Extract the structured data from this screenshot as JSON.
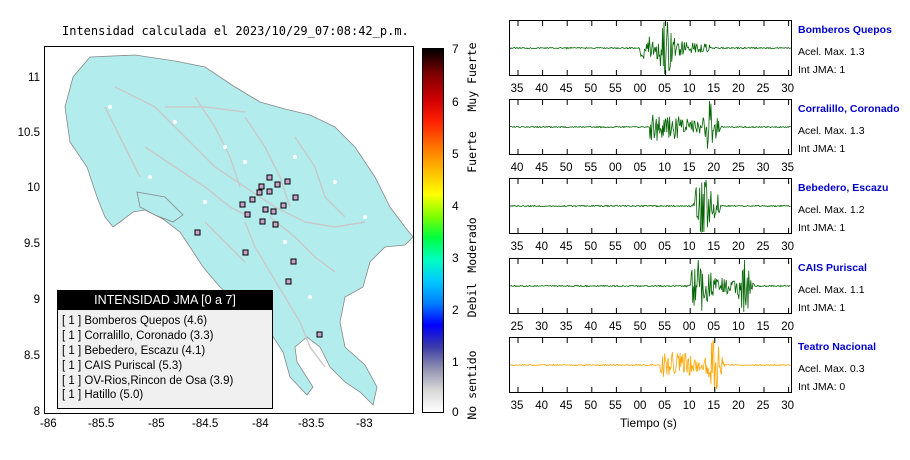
{
  "map": {
    "title": "Intensidad calculada el 2023/10/29_07:08:42_p.m.",
    "y_ticks": [
      "11",
      "10.5",
      "10",
      "9.5",
      "9",
      "8.5",
      "8"
    ],
    "x_ticks": [
      "-86",
      "-85.5",
      "-85",
      "-84.5",
      "-84",
      "-83.5",
      "-83"
    ]
  },
  "legend": {
    "header": "INTENSIDAD JMA [0 a 7]",
    "rows": [
      "[ 1 ]  Bomberos Quepos (4.6)",
      "[ 1 ]  Corralillo, Coronado (3.3)",
      "[ 1 ]  Bebedero, Escazu (4.1)",
      "[ 1 ]  CAIS Puriscal (5.3)",
      "[ 1 ]  OV-Rios,Rincon de Osa (3.9)",
      "[ 1 ]  Hatillo (5.0)"
    ]
  },
  "colorbar": {
    "numbers": [
      "7",
      "6",
      "5",
      "4",
      "3",
      "2",
      "1",
      "0"
    ],
    "words": [
      "Muy Fuerte",
      "Fuerte",
      "Moderado",
      "Debil",
      "No sentido"
    ]
  },
  "stations": [
    {
      "name": "Bomberos Quepos",
      "acel": "Acel. Max. 1.3",
      "jma": "Int JMA: 1",
      "color": "#006400",
      "ticks": [
        "35",
        "40",
        "45",
        "50",
        "55",
        "00",
        "05",
        "10",
        "15",
        "20",
        "25",
        "30"
      ]
    },
    {
      "name": "Corralillo, Coronado",
      "acel": "Acel. Max. 1.3",
      "jma": "Int JMA: 1",
      "color": "#006400",
      "ticks": [
        "40",
        "45",
        "50",
        "55",
        "00",
        "05",
        "10",
        "15",
        "20",
        "25",
        "30",
        "35"
      ]
    },
    {
      "name": "Bebedero, Escazu",
      "acel": "Acel. Max. 1.2",
      "jma": "Int JMA: 1",
      "color": "#006400",
      "ticks": [
        "35",
        "40",
        "45",
        "50",
        "55",
        "00",
        "05",
        "10",
        "15",
        "20",
        "25",
        "30"
      ]
    },
    {
      "name": "CAIS Puriscal",
      "acel": "Acel. Max. 1.1",
      "jma": "Int JMA: 1",
      "color": "#006400",
      "ticks": [
        "25",
        "30",
        "35",
        "40",
        "45",
        "50",
        "55",
        "00",
        "05",
        "10",
        "15",
        "20"
      ]
    },
    {
      "name": "Teatro Nacional",
      "acel": "Acel. Max. 0.3",
      "jma": "Int JMA: 0",
      "color": "#ffa500",
      "ticks": [
        "35",
        "40",
        "45",
        "50",
        "55",
        "00",
        "05",
        "10",
        "15",
        "20",
        "25",
        "30"
      ]
    }
  ],
  "time_axis_label": "Tiempo (s)"
}
